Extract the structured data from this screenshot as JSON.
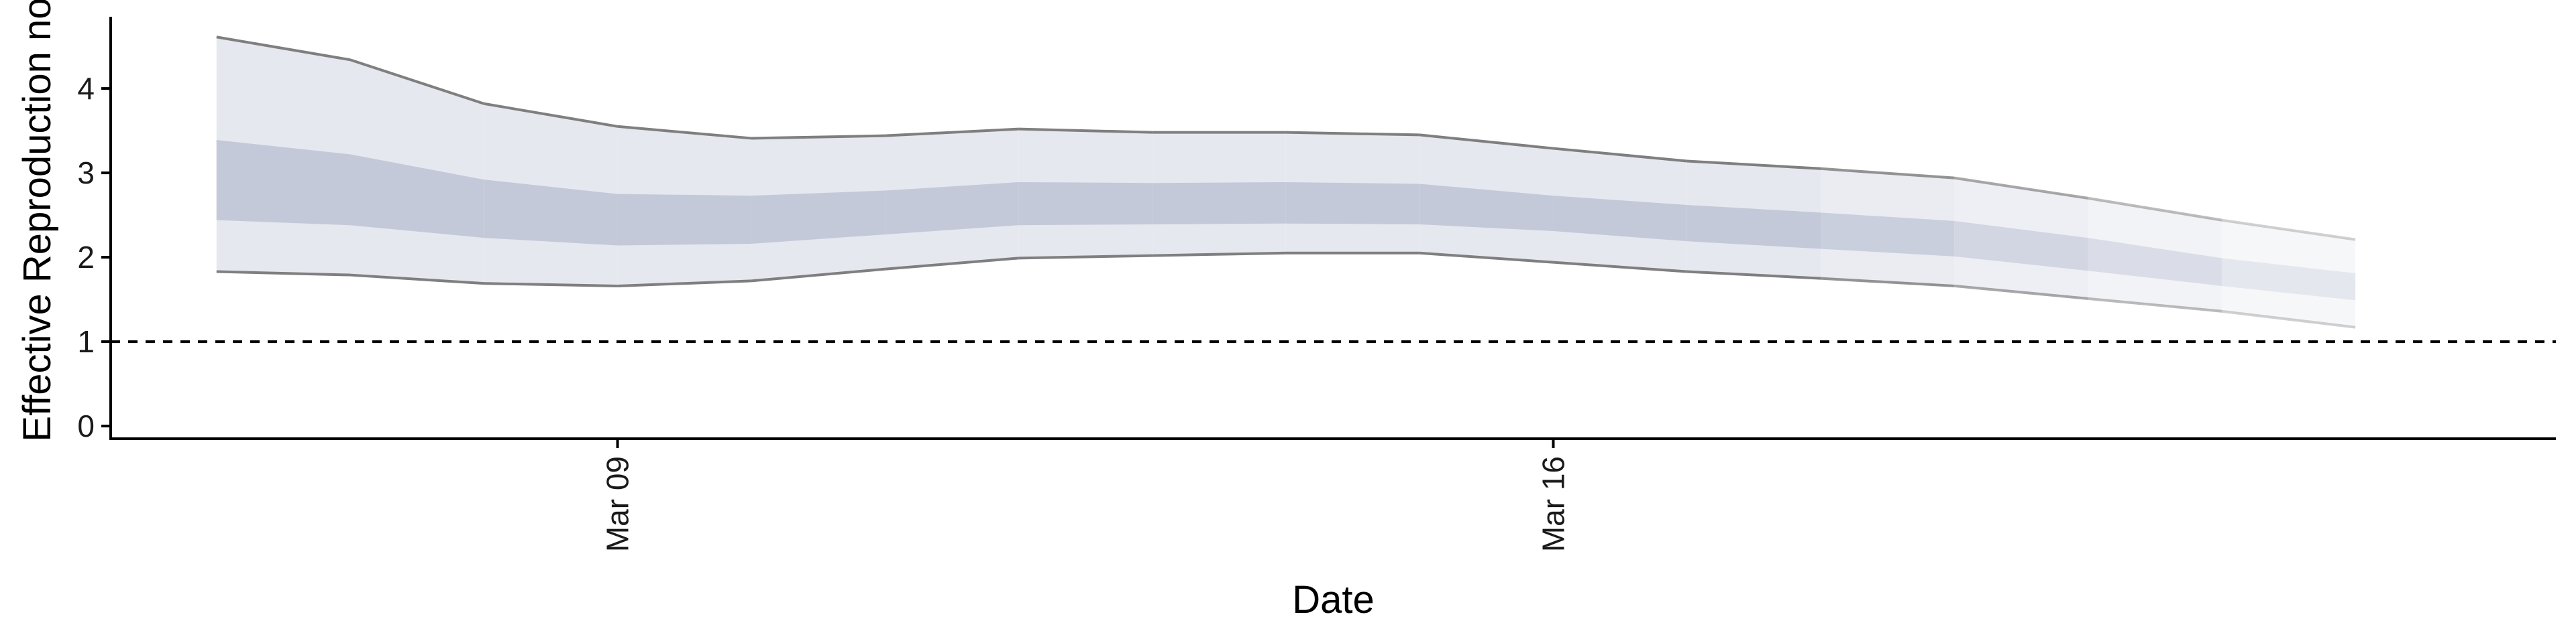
{
  "chart_data": {
    "type": "area",
    "title": "",
    "xlabel": "Date",
    "ylabel": "Effective Reproduction no.",
    "ylim": [
      -0.15,
      4.85
    ],
    "yticks": [
      0,
      1,
      2,
      3,
      4
    ],
    "ytick_labels": [
      "0",
      "1",
      "2",
      "3",
      "4"
    ],
    "xticks": [
      "2020-03-09",
      "2020-03-16"
    ],
    "xtick_labels": [
      "Mar 09",
      "Mar 16"
    ],
    "xlim": [
      "2020-03-05T05:00",
      "2020-03-23T12:00"
    ],
    "reference_line": {
      "y": 1,
      "style": "dashed"
    },
    "grid": false,
    "legend": "none",
    "colors": {
      "band_outer": "#e6e8ef",
      "band_inner": "#c4c9d9",
      "bound_line": "#7f7f7f",
      "axis": "#000000"
    },
    "x": [
      "2020-03-06",
      "2020-03-07",
      "2020-03-08",
      "2020-03-09",
      "2020-03-10",
      "2020-03-11",
      "2020-03-12",
      "2020-03-13",
      "2020-03-14",
      "2020-03-15",
      "2020-03-16",
      "2020-03-17",
      "2020-03-18",
      "2020-03-19",
      "2020-03-20",
      "2020-03-21",
      "2020-03-22"
    ],
    "series": [
      {
        "band": "outer_upper",
        "values": [
          4.61,
          4.34,
          3.82,
          3.55,
          3.41,
          3.44,
          3.52,
          3.48,
          3.48,
          3.45,
          3.29,
          3.14,
          3.05,
          2.94,
          2.7,
          2.44,
          2.21
        ]
      },
      {
        "band": "inner_upper",
        "values": [
          3.39,
          3.22,
          2.92,
          2.75,
          2.73,
          2.79,
          2.89,
          2.88,
          2.89,
          2.87,
          2.73,
          2.62,
          2.53,
          2.43,
          2.23,
          1.99,
          1.81
        ]
      },
      {
        "band": "inner_lower",
        "values": [
          2.44,
          2.38,
          2.23,
          2.14,
          2.16,
          2.27,
          2.38,
          2.39,
          2.4,
          2.39,
          2.31,
          2.19,
          2.1,
          2.01,
          1.84,
          1.66,
          1.49
        ]
      },
      {
        "band": "outer_lower",
        "values": [
          1.83,
          1.79,
          1.69,
          1.66,
          1.72,
          1.86,
          1.99,
          2.02,
          2.05,
          2.05,
          1.94,
          1.83,
          1.75,
          1.66,
          1.51,
          1.36,
          1.17
        ]
      }
    ],
    "estimate_type_fade_from_index": 12
  }
}
